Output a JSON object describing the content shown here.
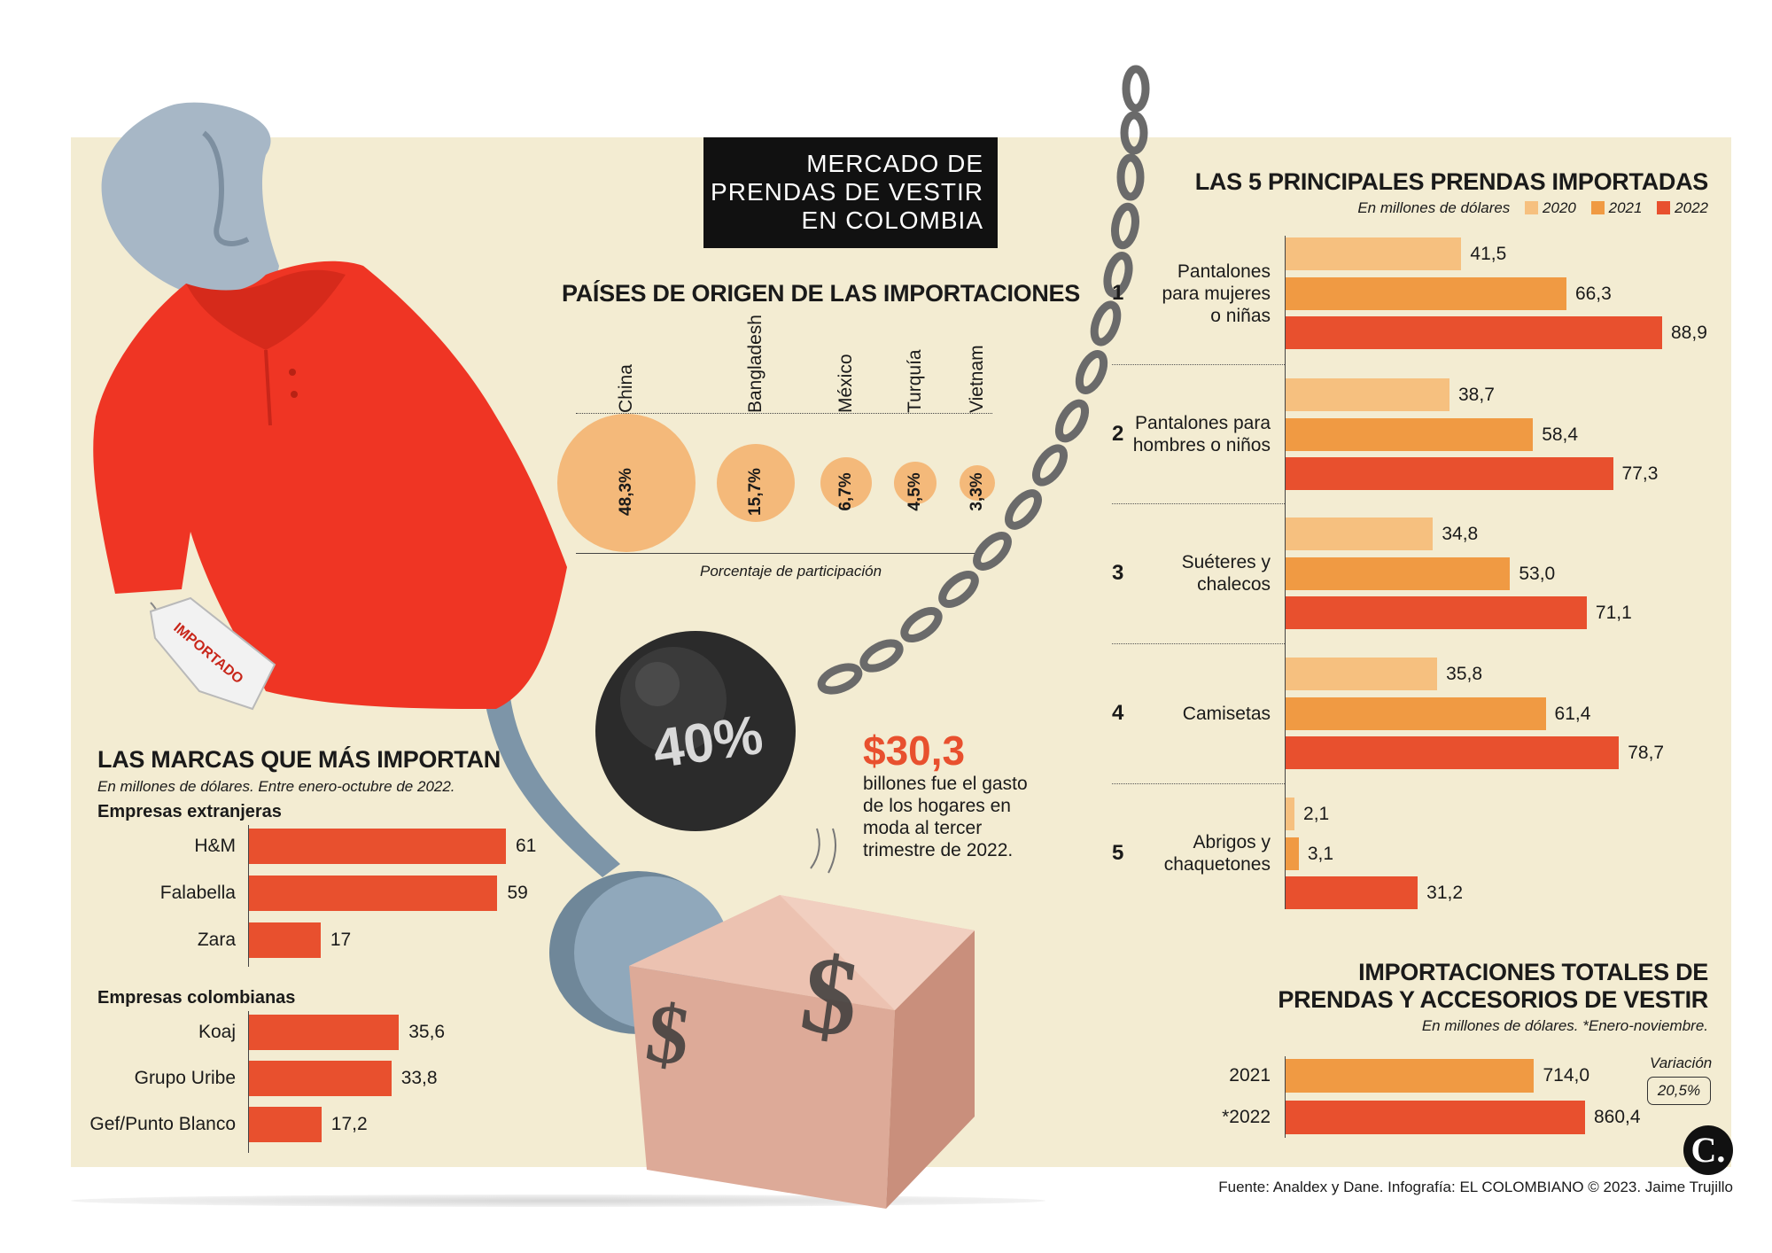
{
  "title": {
    "line1": "MERCADO DE",
    "line2": "PRENDAS DE VESTIR",
    "line3": "EN COLOMBIA"
  },
  "illustration": {
    "tag_text": "IMPORTADO",
    "ball_text": "40%",
    "cube_symbol": "$",
    "tag_icon": "price-tag-icon",
    "ball_icon": "wrecking-ball-icon",
    "cube_icon": "dollar-cube-icon",
    "mannequin_icon": "mannequin-shirt-icon"
  },
  "highlight": {
    "value": "$30,3",
    "line1": "billones fue el gasto",
    "line2": "de los hogares en",
    "line3": "moda al tercer",
    "line4": "trimestre de 2022."
  },
  "colors": {
    "y2020": "#f6c07f",
    "y2021": "#f09a43",
    "y2022": "#e8502e",
    "bubble": "#f4b97a",
    "panel": "#f3ecd2",
    "brand_bar": "#e8502e"
  },
  "source": "Fuente: Analdex y Dane. Infografía: EL COLOMBIANO © 2023. Jaime Trujillo",
  "logo": "C.",
  "chart_data": [
    {
      "type": "bubble",
      "title": "PAÍSES DE ORIGEN DE LAS IMPORTACIONES",
      "xlabel": "Porcentaje de participación",
      "categories": [
        "China",
        "Bangladesh",
        "México",
        "Turquía",
        "Vietnam"
      ],
      "values": [
        48.3,
        15.7,
        6.7,
        4.5,
        3.3
      ],
      "labels": [
        "48,3%",
        "15,7%",
        "6,7%",
        "4,5%",
        "3,3%"
      ]
    },
    {
      "type": "bar",
      "orientation": "horizontal",
      "title": "LAS MARCAS QUE MÁS IMPORTAN",
      "subtitle": "En millones de dólares. Entre enero-octubre de 2022.",
      "groups": [
        {
          "name": "Empresas extranjeras",
          "categories": [
            "H&M",
            "Falabella",
            "Zara"
          ],
          "values": [
            61,
            59,
            17
          ],
          "labels": [
            "61",
            "59",
            "17"
          ]
        },
        {
          "name": "Empresas colombianas",
          "categories": [
            "Koaj",
            "Grupo Uribe",
            "Gef/Punto Blanco"
          ],
          "values": [
            35.6,
            33.8,
            17.2
          ],
          "labels": [
            "35,6",
            "33,8",
            "17,2"
          ]
        }
      ]
    },
    {
      "type": "bar",
      "orientation": "horizontal",
      "title": "LAS 5 PRINCIPALES PRENDAS IMPORTADAS",
      "subtitle": "En millones de dólares",
      "legend": [
        "2020",
        "2021",
        "2022"
      ],
      "categories": [
        {
          "rank": "1",
          "lines": [
            "Pantalones",
            "para mujeres",
            "o niñas"
          ]
        },
        {
          "rank": "2",
          "lines": [
            "Pantalones para",
            "hombres o niños"
          ]
        },
        {
          "rank": "3",
          "lines": [
            "Suéteres y",
            "chalecos"
          ]
        },
        {
          "rank": "4",
          "lines": [
            "Camisetas"
          ]
        },
        {
          "rank": "5",
          "lines": [
            "Abrigos y",
            "chaquetones"
          ]
        }
      ],
      "series": [
        {
          "name": "2020",
          "values": [
            41.5,
            38.7,
            34.8,
            35.8,
            2.1
          ],
          "labels": [
            "41,5",
            "38,7",
            "34,8",
            "35,8",
            "2,1"
          ]
        },
        {
          "name": "2021",
          "values": [
            66.3,
            58.4,
            53.0,
            61.4,
            3.1
          ],
          "labels": [
            "66,3",
            "58,4",
            "53,0",
            "61,4",
            "3,1"
          ]
        },
        {
          "name": "2022",
          "values": [
            88.9,
            77.3,
            71.1,
            78.7,
            31.2
          ],
          "labels": [
            "88,9",
            "77,3",
            "71,1",
            "78,7",
            "31,2"
          ]
        }
      ]
    },
    {
      "type": "bar",
      "orientation": "horizontal",
      "title_line1": "IMPORTACIONES TOTALES DE",
      "title_line2": "PRENDAS Y ACCESORIOS DE VESTIR",
      "subtitle": "En millones de dólares. *Enero-noviembre.",
      "categories": [
        "2021",
        "*2022"
      ],
      "values": [
        714.0,
        860.4
      ],
      "labels": [
        "714,0",
        "860,4"
      ],
      "variation_label": "Variación",
      "variation_value": "20,5%"
    }
  ]
}
